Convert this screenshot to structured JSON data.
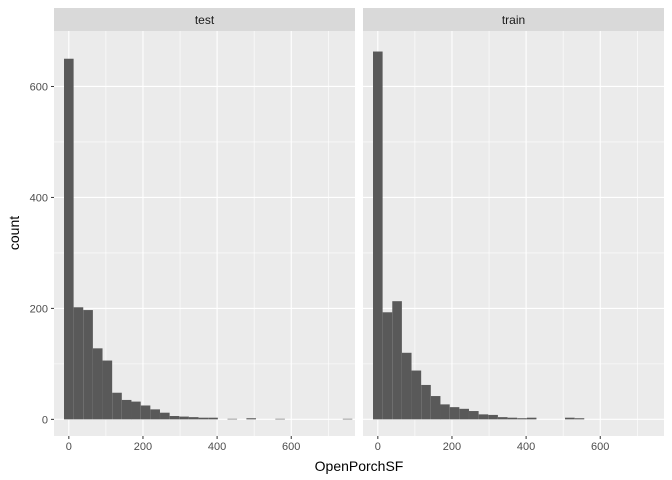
{
  "chart_data": {
    "type": "bar",
    "subtype": "faceted-histogram",
    "xlabel": "OpenPorchSF",
    "ylabel": "count",
    "xlim": [
      -40,
      772
    ],
    "ylim": [
      -30,
      700
    ],
    "x_ticks": [
      0,
      200,
      400,
      600
    ],
    "y_ticks": [
      0,
      200,
      400,
      600
    ],
    "bin_width": 25.9,
    "grid": true,
    "colors": {
      "bar": "#595959",
      "panel_bg": "#ebebeb",
      "strip_bg": "#d9d9d9",
      "grid": "#ffffff"
    },
    "facets": [
      {
        "label": "test",
        "bins_x0": [
          -13,
          13,
          39,
          65,
          91,
          117,
          143,
          168,
          194,
          220,
          246,
          272,
          298,
          324,
          350,
          376,
          402,
          428,
          453,
          479,
          505,
          531,
          557,
          583,
          609,
          635,
          661,
          687,
          713,
          739
        ],
        "counts": [
          650,
          202,
          197,
          128,
          106,
          48,
          35,
          32,
          25,
          18,
          12,
          6,
          5,
          4,
          3,
          3,
          0,
          1,
          0,
          2,
          0,
          0,
          1,
          0,
          0,
          0,
          0,
          0,
          0,
          1
        ]
      },
      {
        "label": "train",
        "bins_x0": [
          -13,
          13,
          39,
          65,
          91,
          117,
          143,
          168,
          194,
          220,
          246,
          272,
          298,
          324,
          350,
          376,
          402,
          428,
          453,
          479,
          505,
          531,
          557,
          583,
          609,
          635,
          661,
          687,
          713,
          739
        ],
        "counts": [
          663,
          193,
          213,
          120,
          88,
          62,
          42,
          27,
          22,
          19,
          15,
          9,
          8,
          4,
          3,
          2,
          3,
          0,
          0,
          0,
          3,
          2,
          0,
          0,
          0,
          0,
          0,
          0,
          0,
          0
        ]
      }
    ]
  }
}
